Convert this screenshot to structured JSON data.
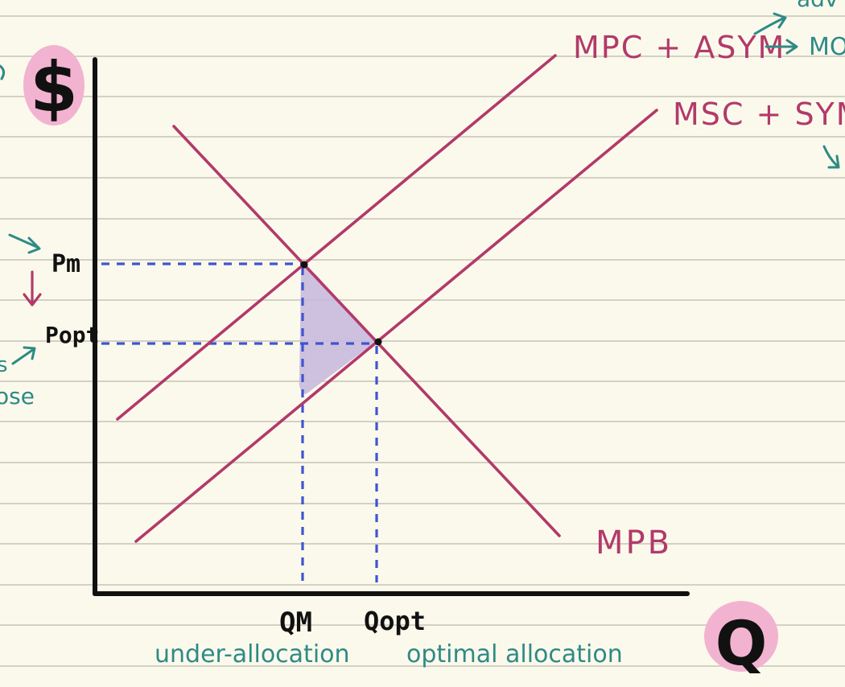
{
  "diagram": {
    "axis_y_label": "$",
    "axis_x_label": "Q",
    "curves": {
      "mpc_label": "MPC + ASYM",
      "msc_label": "MSC + SYM",
      "mpb_label": "MPB"
    },
    "prices": {
      "pm_label": "Pm",
      "popt_label": "Popt"
    },
    "quantities": {
      "qm_label": "QM",
      "qopt_label": "Qopt"
    },
    "captions": {
      "under_allocation": "under-allocation",
      "optimal_allocation": "optimal allocation"
    },
    "edge_fragments": {
      "top_right_1": "adv",
      "top_right_2": "MO",
      "left_fragment_1": "s",
      "left_fragment_2": "ose"
    },
    "colors": {
      "paper": "#fbf9ec",
      "rule_line": "#c6c4b6",
      "curve": "#b23a6a",
      "dashed": "#3f55cf",
      "triangle_fill": "#c9b9de",
      "highlight": "#f1b3cf",
      "teal": "#2f8a86",
      "axis": "#111111"
    }
  }
}
